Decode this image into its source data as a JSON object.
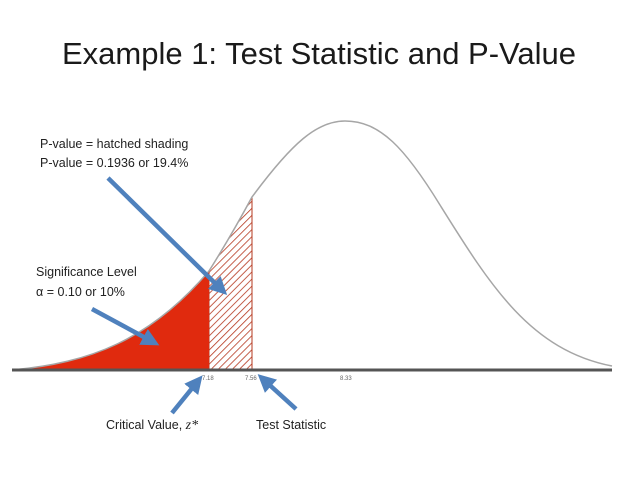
{
  "slide": {
    "title": "Example 1: Test Statistic and P-Value"
  },
  "annotations": {
    "pvalue_line1": "P-value = hatched shading",
    "pvalue_line2": "P-value = 0.1936 or 19.4%",
    "significance_line1": "Significance Level",
    "significance_alpha_symbol": "α",
    "significance_line2": "= 0.10 or 10%",
    "critical_value_label": "Critical Value,",
    "critical_value_symbol": "z*",
    "test_statistic_label": "Test Statistic"
  },
  "axis": {
    "ticks": [
      "7.18",
      "7.56",
      "8.33"
    ]
  },
  "colors": {
    "significance_fill": "#e02a0e",
    "hatch_stroke": "#b5381f",
    "curve": "#a6a6a6",
    "arrows": "#4f81bd"
  }
}
